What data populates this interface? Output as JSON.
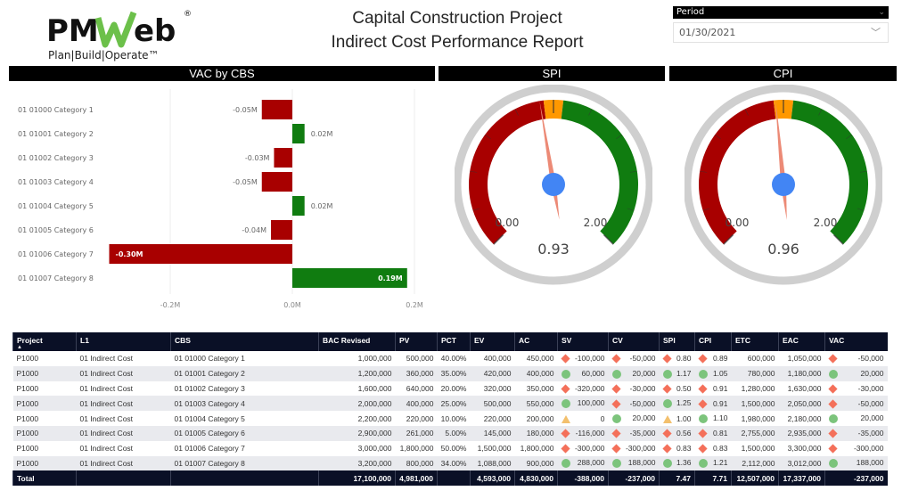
{
  "logo": {
    "text": "PMWeb",
    "tagline": "Plan|Build|Operate"
  },
  "header": {
    "title_line1": "Capital Construction Project",
    "title_line2": "Indirect Cost Performance Report"
  },
  "period": {
    "label": "Period",
    "value": "01/30/2021"
  },
  "sections": {
    "vac": "VAC by CBS",
    "spi": "SPI",
    "cpi": "CPI"
  },
  "colors": {
    "negative": "#a80000",
    "positive": "#107c10",
    "neutral": "#ff9800",
    "needle": "#ec8a76",
    "hub": "#4285f4",
    "header_bg": "#0a1026"
  },
  "chart_data": {
    "type": "bar",
    "orientation": "horizontal",
    "title": "VAC by CBS",
    "categories": [
      "01 01000 Category 1",
      "01 01001 Category 2",
      "01 01002 Category 3",
      "01 01003 Category 4",
      "01 01004 Category 5",
      "01 01005 Category 6",
      "01 01006 Category 7",
      "01 01007 Category 8"
    ],
    "values": [
      -0.05,
      0.02,
      -0.03,
      -0.05,
      0.02,
      -0.035,
      -0.3,
      0.188
    ],
    "data_labels": [
      "-0.05M",
      "0.02M",
      "-0.03M",
      "-0.05M",
      "0.02M",
      "-0.04M",
      "-0.30M",
      "0.19M"
    ],
    "xlim": [
      -0.3,
      0.2
    ],
    "x_ticks": [
      {
        "v": -0.2,
        "label": "-0.2M"
      },
      {
        "v": 0,
        "label": "0.0M"
      },
      {
        "v": 0.2,
        "label": "0.2M"
      }
    ],
    "grid": true
  },
  "gauges": [
    {
      "id": "spi",
      "value": 0.93,
      "value_label": "0.93",
      "min": 0,
      "max": 2,
      "min_label": "0.00",
      "max_label": "2.00",
      "bands": [
        [
          0,
          0.95,
          "#a80000"
        ],
        [
          0.95,
          1.05,
          "#ff9800"
        ],
        [
          1.05,
          2,
          "#107c10"
        ]
      ]
    },
    {
      "id": "cpi",
      "value": 0.96,
      "value_label": "0.96",
      "min": 0,
      "max": 2,
      "min_label": "0.00",
      "max_label": "2.00",
      "bands": [
        [
          0,
          0.95,
          "#a80000"
        ],
        [
          0.95,
          1.05,
          "#ff9800"
        ],
        [
          1.05,
          2,
          "#107c10"
        ]
      ]
    }
  ],
  "table": {
    "columns": [
      "Project",
      "L1",
      "CBS",
      "BAC Revised",
      "PV",
      "PCT",
      "EV",
      "AC",
      "SV",
      "CV",
      "SPI",
      "CPI",
      "ETC",
      "EAC",
      "VAC"
    ],
    "sort_column": "Project",
    "rows": [
      [
        "P1000",
        "01 Indirect Cost",
        "01 01000 Category 1",
        "1,000,000",
        "500,000",
        "40.00%",
        "400,000",
        "450,000",
        [
          "bad",
          "-100,000"
        ],
        [
          "bad",
          "-50,000"
        ],
        [
          "bad",
          "0.80"
        ],
        [
          "bad",
          "0.89"
        ],
        "600,000",
        "1,050,000",
        [
          "bad",
          "-50,000"
        ]
      ],
      [
        "P1000",
        "01 Indirect Cost",
        "01 01001 Category 2",
        "1,200,000",
        "360,000",
        "35.00%",
        "420,000",
        "400,000",
        [
          "good",
          "60,000"
        ],
        [
          "good",
          "20,000"
        ],
        [
          "good",
          "1.17"
        ],
        [
          "good",
          "1.05"
        ],
        "780,000",
        "1,180,000",
        [
          "good",
          "20,000"
        ]
      ],
      [
        "P1000",
        "01 Indirect Cost",
        "01 01002 Category 3",
        "1,600,000",
        "640,000",
        "20.00%",
        "320,000",
        "350,000",
        [
          "bad",
          "-320,000"
        ],
        [
          "bad",
          "-30,000"
        ],
        [
          "bad",
          "0.50"
        ],
        [
          "bad",
          "0.91"
        ],
        "1,280,000",
        "1,630,000",
        [
          "bad",
          "-30,000"
        ]
      ],
      [
        "P1000",
        "01 Indirect Cost",
        "01 01003 Category 4",
        "2,000,000",
        "400,000",
        "25.00%",
        "500,000",
        "550,000",
        [
          "good",
          "100,000"
        ],
        [
          "bad",
          "-50,000"
        ],
        [
          "good",
          "1.25"
        ],
        [
          "bad",
          "0.91"
        ],
        "1,500,000",
        "2,050,000",
        [
          "bad",
          "-50,000"
        ]
      ],
      [
        "P1000",
        "01 Indirect Cost",
        "01 01004 Category 5",
        "2,200,000",
        "220,000",
        "10.00%",
        "220,000",
        "200,000",
        [
          "neutral",
          "0"
        ],
        [
          "good",
          "20,000"
        ],
        [
          "neutral",
          "1.00"
        ],
        [
          "good",
          "1.10"
        ],
        "1,980,000",
        "2,180,000",
        [
          "good",
          "20,000"
        ]
      ],
      [
        "P1000",
        "01 Indirect Cost",
        "01 01005 Category 6",
        "2,900,000",
        "261,000",
        "5.00%",
        "145,000",
        "180,000",
        [
          "bad",
          "-116,000"
        ],
        [
          "bad",
          "-35,000"
        ],
        [
          "bad",
          "0.56"
        ],
        [
          "bad",
          "0.81"
        ],
        "2,755,000",
        "2,935,000",
        [
          "bad",
          "-35,000"
        ]
      ],
      [
        "P1000",
        "01 Indirect Cost",
        "01 01006 Category 7",
        "3,000,000",
        "1,800,000",
        "50.00%",
        "1,500,000",
        "1,800,000",
        [
          "bad",
          "-300,000"
        ],
        [
          "bad",
          "-300,000"
        ],
        [
          "bad",
          "0.83"
        ],
        [
          "bad",
          "0.83"
        ],
        "1,500,000",
        "3,300,000",
        [
          "bad",
          "-300,000"
        ]
      ],
      [
        "P1000",
        "01 Indirect Cost",
        "01 01007 Category 8",
        "3,200,000",
        "800,000",
        "34.00%",
        "1,088,000",
        "900,000",
        [
          "good",
          "288,000"
        ],
        [
          "good",
          "188,000"
        ],
        [
          "good",
          "1.36"
        ],
        [
          "good",
          "1.21"
        ],
        "2,112,000",
        "3,012,000",
        [
          "good",
          "188,000"
        ]
      ]
    ],
    "total": [
      "Total",
      "",
      "",
      "17,100,000",
      "4,981,000",
      "",
      "4,593,000",
      "4,830,000",
      "-388,000",
      "-237,000",
      "7.47",
      "7.71",
      "12,507,000",
      "17,337,000",
      "-237,000"
    ]
  }
}
